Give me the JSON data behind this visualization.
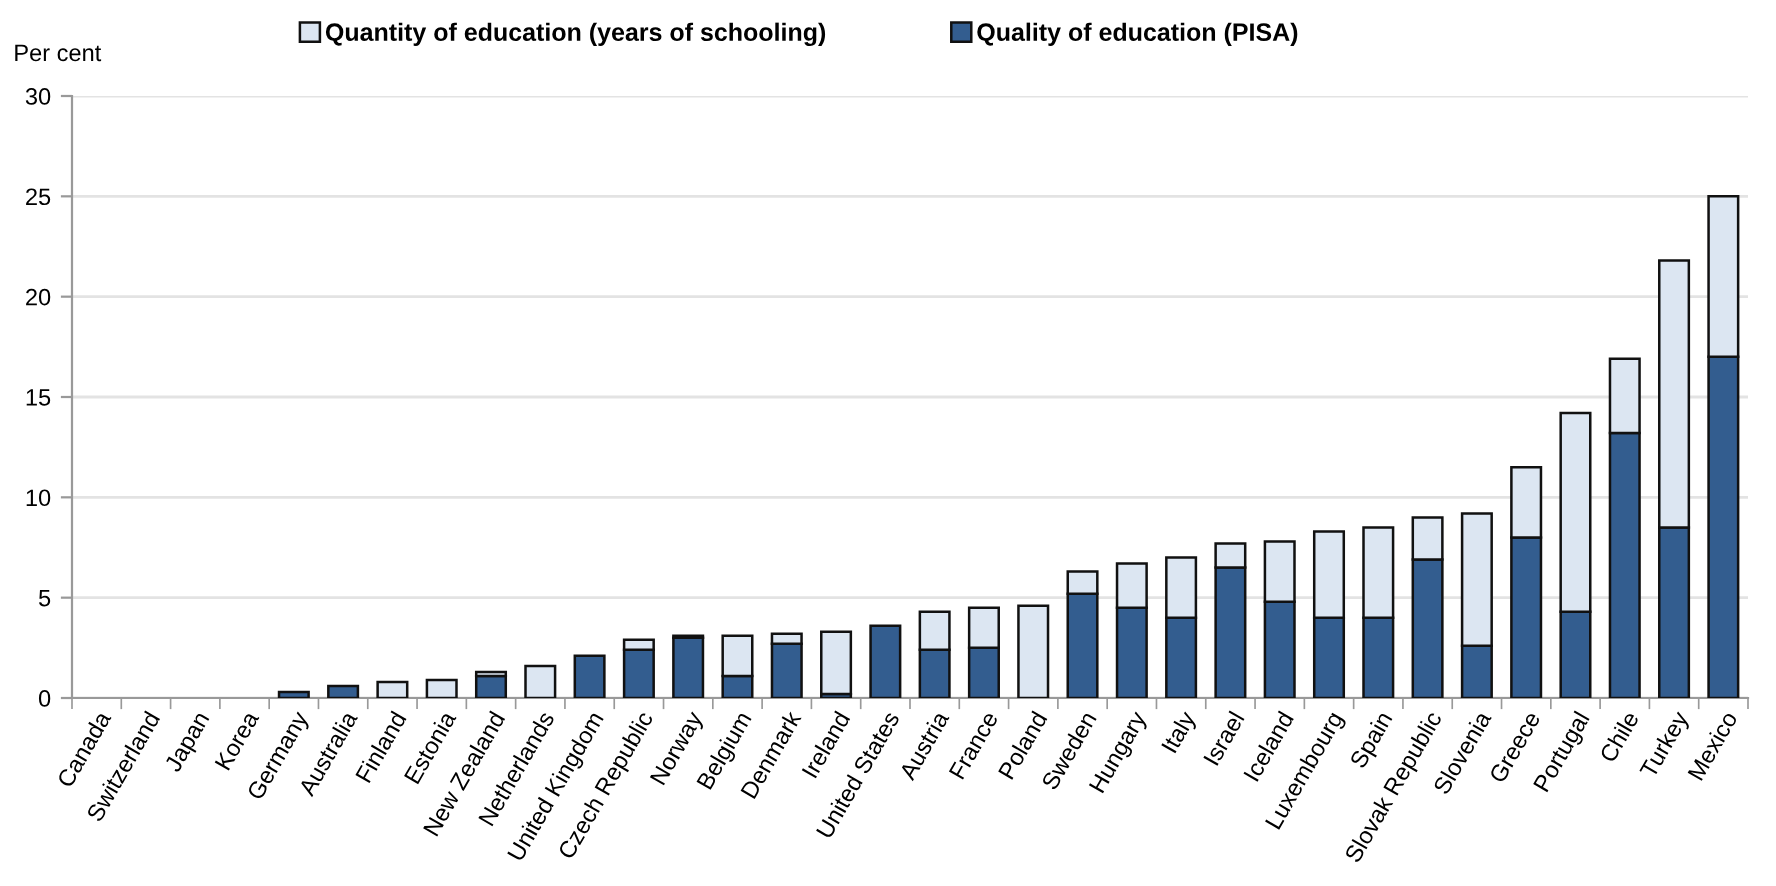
{
  "chart_data": {
    "type": "bar",
    "stacked": true,
    "ylabel": "Per cent",
    "categories": [
      "Canada",
      "Switzerland",
      "Japan",
      "Korea",
      "Germany",
      "Australia",
      "Finland",
      "Estonia",
      "New Zealand",
      "Netherlands",
      "United Kingdom",
      "Czech Republic",
      "Norway",
      "Belgium",
      "Denmark",
      "Ireland",
      "United States",
      "Austria",
      "France",
      "Poland",
      "Sweden",
      "Hungary",
      "Italy",
      "Israel",
      "Iceland",
      "Luxembourg",
      "Spain",
      "Slovak Republic",
      "Slovenia",
      "Greece",
      "Portugal",
      "Chile",
      "Turkey",
      "Mexico"
    ],
    "series": [
      {
        "name": "Quality of education (PISA)",
        "color": "#335d8f",
        "values": [
          null,
          null,
          null,
          null,
          0.3,
          0.6,
          null,
          null,
          1.1,
          null,
          2.1,
          2.4,
          3.0,
          1.1,
          2.7,
          0.2,
          3.6,
          2.4,
          2.5,
          null,
          5.2,
          4.5,
          4.0,
          6.5,
          4.8,
          4.0,
          4.0,
          6.9,
          2.6,
          8.0,
          4.3,
          13.2,
          8.5,
          17.0
        ]
      },
      {
        "name": "Quantity of education (years of schooling)",
        "color": "#dce6f2",
        "values": [
          null,
          null,
          null,
          null,
          null,
          null,
          0.8,
          0.9,
          0.2,
          1.6,
          null,
          0.5,
          0.1,
          2.0,
          0.5,
          3.1,
          null,
          1.9,
          2.0,
          4.6,
          1.1,
          2.2,
          3.0,
          1.2,
          3.0,
          4.3,
          4.5,
          2.1,
          6.6,
          3.5,
          9.9,
          3.7,
          13.3,
          8.0
        ]
      }
    ],
    "ylim": [
      0,
      30
    ],
    "yticks": [
      0,
      5,
      10,
      15,
      20,
      25,
      30
    ],
    "grid": "y",
    "legend": "top"
  }
}
